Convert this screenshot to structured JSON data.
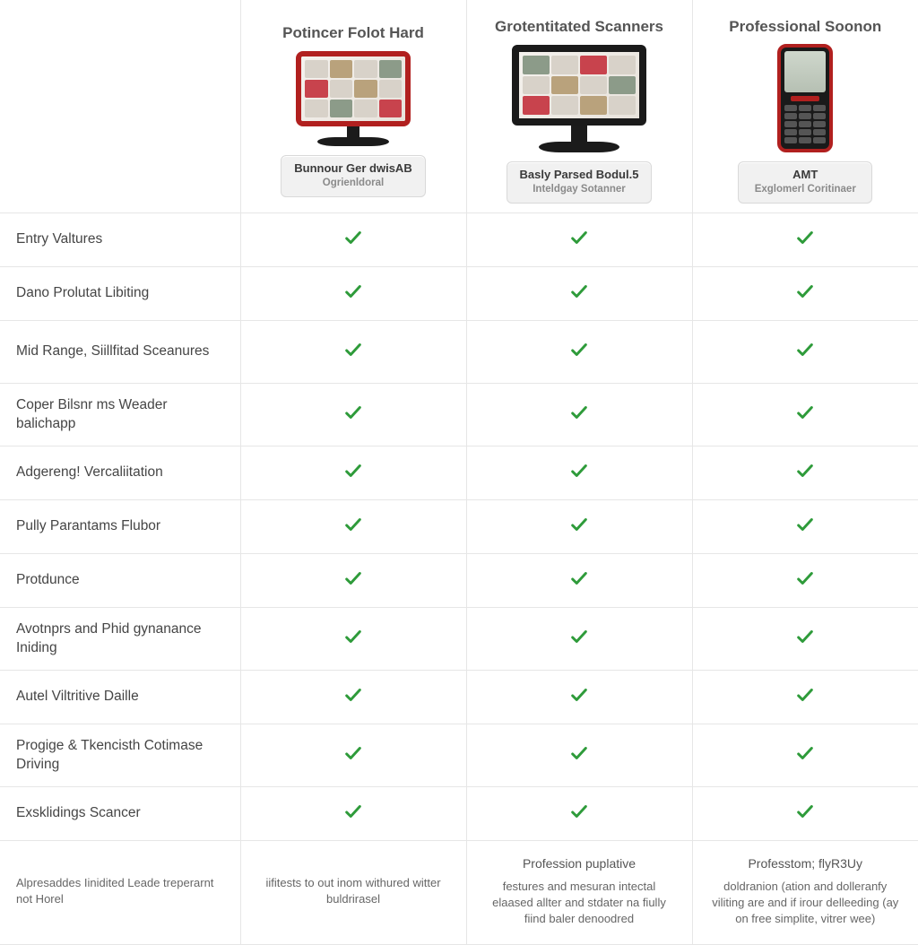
{
  "columns": [
    {
      "header": "Potincer Folot Hard",
      "buttonLine1": "Bunnour Ger dwisAB",
      "buttonLine2": "Ogrienldoral",
      "descTitle": "",
      "descBody": "iifitests to out inom withured witter buldrirasel"
    },
    {
      "header": "Grotentitated Scanners",
      "buttonLine1": "Basly Parsed Bodul.5",
      "buttonLine2": "Inteldgay Sotanner",
      "descTitle": "Profession puplative",
      "descBody": "festures and mesuran intectal elaased allter and stdater na fiully fiind baler denoodred"
    },
    {
      "header": "Professional Soonon",
      "buttonLine1": "AMT",
      "buttonLine2": "Exglomerl Coritinaer",
      "descTitle": "Professtom; flyR3Uy",
      "descBody": "doldranion (ation and dolleranfy viliting are and if irour delleeding (ay on free simplite, vitrer wee)"
    }
  ],
  "features": [
    "Entry Valtures",
    "Dano Prolutat Libiting",
    "Mid Range, Siillfitad Sceanures",
    "Coper Bilsnr ms Weader balichapp",
    "Adgereng! Vercaliitation",
    "Pully Parantams Flubor",
    "Protdunce",
    "Avotnprs and Phid gynanance Iniding",
    "Autel Viltritive Daille",
    "Progige & Tkencisth Cotimase Driving",
    "Exsklidings Scancer"
  ],
  "footerFeature": "Alpresaddes Iinidited Leade treperarnt not Horel",
  "matrix": [
    [
      true,
      true,
      true
    ],
    [
      true,
      true,
      true
    ],
    [
      true,
      true,
      true
    ],
    [
      true,
      true,
      true
    ],
    [
      true,
      true,
      true
    ],
    [
      true,
      true,
      true
    ],
    [
      true,
      true,
      true
    ],
    [
      true,
      true,
      true
    ],
    [
      true,
      true,
      true
    ],
    [
      true,
      true,
      true
    ],
    [
      true,
      true,
      true
    ]
  ],
  "checkColor": "#2e9b3a"
}
